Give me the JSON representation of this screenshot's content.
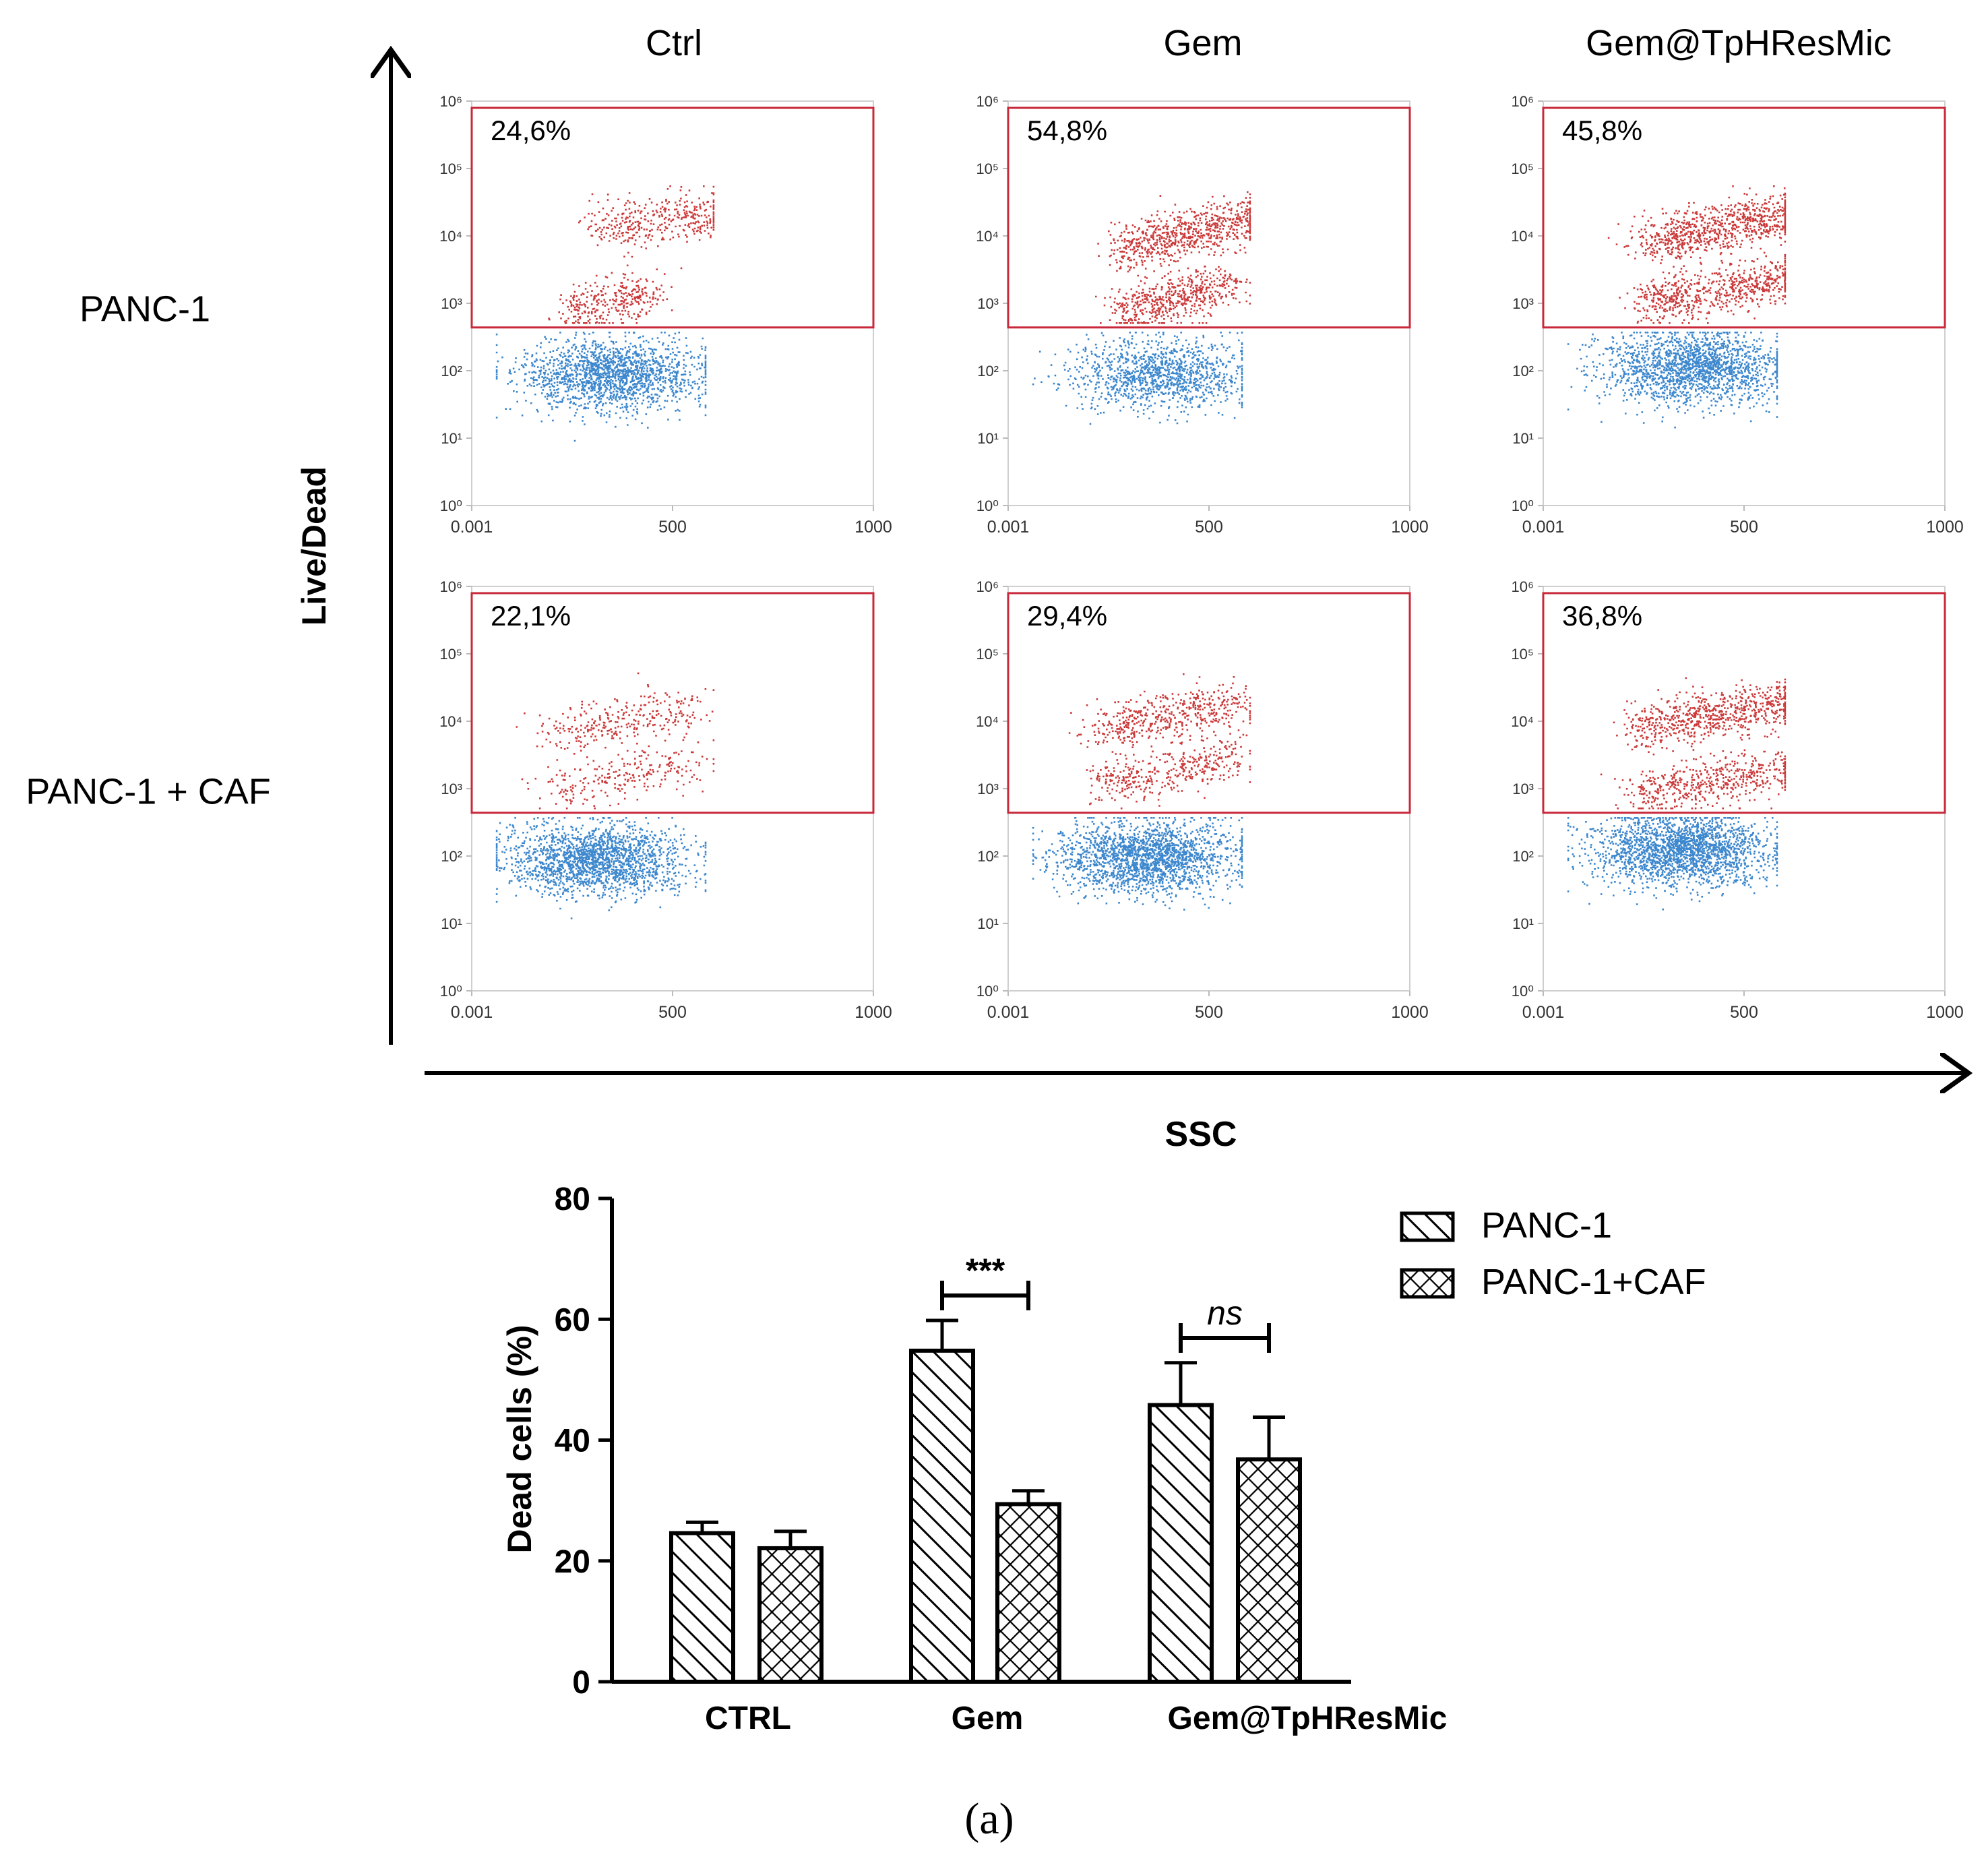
{
  "flow": {
    "columns": [
      "Ctrl",
      "Gem",
      "Gem@TpHResMic"
    ],
    "rows": [
      "PANC-1",
      "PANC-1 + CAF"
    ],
    "y_axis_label": "Live/Dead",
    "x_axis_label": "SSC",
    "y_ticks": [
      "10⁰",
      "10¹",
      "10²",
      "10³",
      "10⁴",
      "10⁵",
      "10⁶"
    ],
    "x_ticks": [
      "0.001",
      "500",
      "1000"
    ],
    "gate_percent": [
      [
        "24,6%",
        "54,8%",
        "45,8%"
      ],
      [
        "22,1%",
        "29,4%",
        "36,8%"
      ]
    ],
    "colors": {
      "dead": "#c21818",
      "live": "#1a72c4",
      "gate": "#c8283a"
    }
  },
  "chart_data": {
    "type": "bar",
    "title": "",
    "xlabel": "",
    "ylabel": "Dead cells (%)",
    "ylim": [
      0,
      80
    ],
    "yticks": [
      "0",
      "20",
      "40",
      "60",
      "80"
    ],
    "categories": [
      "CTRL",
      "Gem",
      "Gem@TpHResMic"
    ],
    "series": [
      {
        "name": "PANC-1",
        "pattern": "diagonal-hatch",
        "values": [
          24.6,
          54.8,
          45.8
        ],
        "errors": [
          1.8,
          5.0,
          7.0
        ]
      },
      {
        "name": "PANC-1+CAF",
        "pattern": "cross-hatch",
        "values": [
          22.1,
          29.4,
          36.8
        ],
        "errors": [
          2.8,
          2.2,
          7.0
        ]
      }
    ],
    "significance": [
      {
        "category": "Gem",
        "label": "***",
        "italic": false
      },
      {
        "category": "Gem@TpHResMic",
        "label": "ns",
        "italic": true
      }
    ],
    "legend_position": "top-right"
  },
  "caption": "(a)"
}
